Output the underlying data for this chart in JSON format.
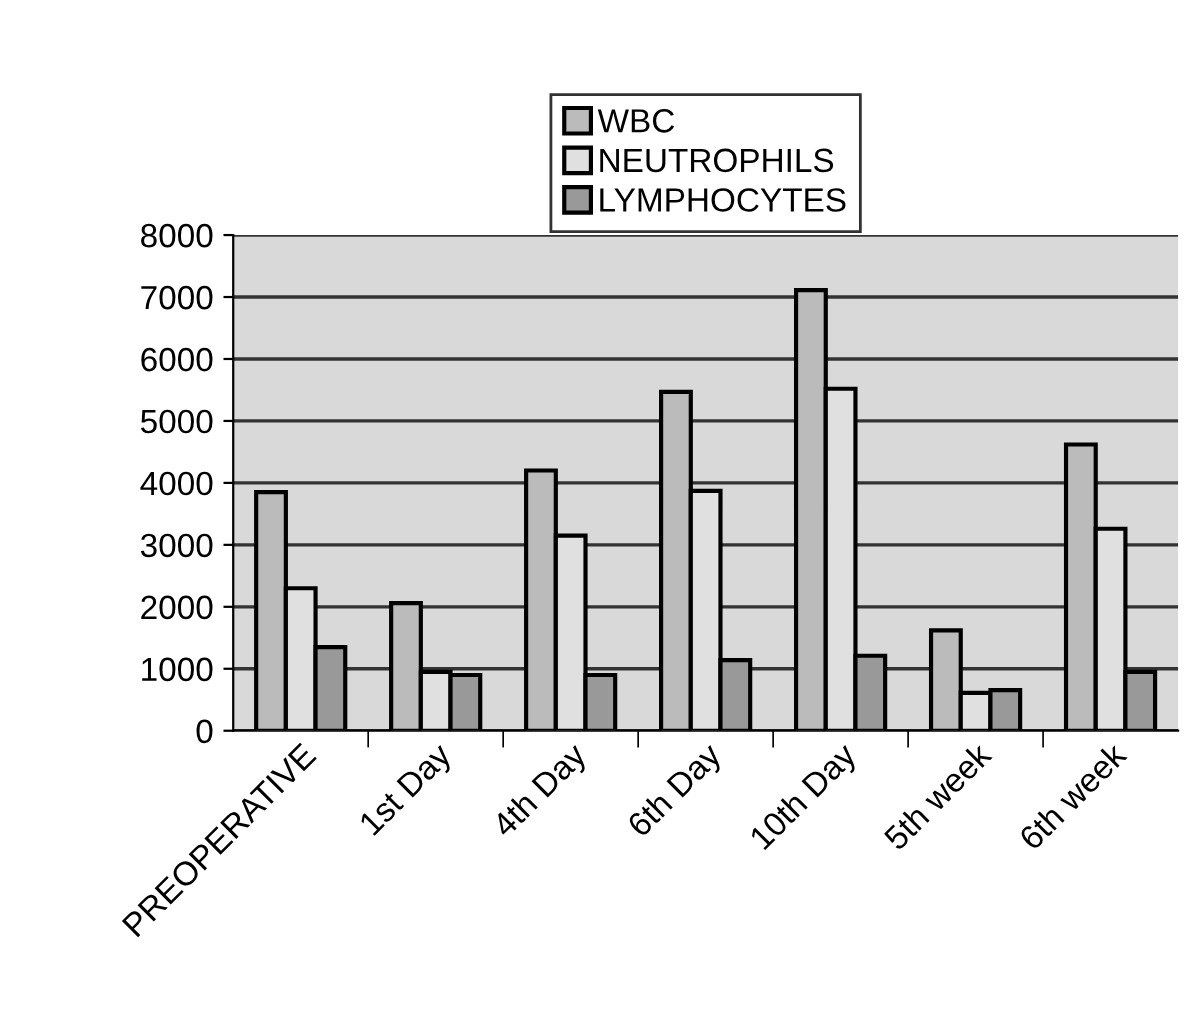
{
  "chart_data": {
    "type": "bar",
    "categories": [
      "PREOPERATIVE",
      "1st Day",
      "4th Day",
      "6th Day",
      "10th Day",
      "5th week",
      "6th week"
    ],
    "series": [
      {
        "name": "WBC",
        "color": "#bbbbbb",
        "values": [
          3850,
          2060,
          4200,
          5470,
          7110,
          1620,
          4620
        ]
      },
      {
        "name": "NEUTROPHILS",
        "color": "#e0e0e0",
        "values": [
          2300,
          950,
          3150,
          3870,
          5520,
          610,
          3260
        ]
      },
      {
        "name": "LYMPHOCYTES",
        "color": "#999999",
        "values": [
          1350,
          900,
          900,
          1140,
          1210,
          655,
          950
        ]
      }
    ],
    "ylim": [
      0,
      8000
    ],
    "yticks": [
      0,
      1000,
      2000,
      3000,
      4000,
      5000,
      6000,
      7000,
      8000
    ],
    "grid": "y",
    "legend": "top"
  }
}
